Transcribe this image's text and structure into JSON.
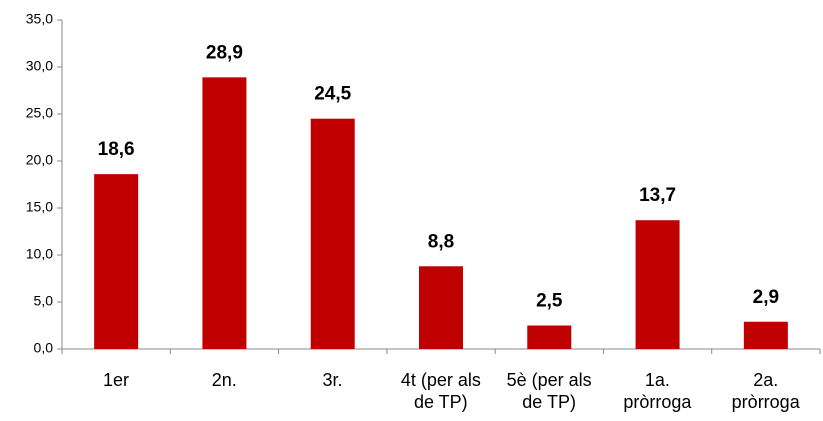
{
  "chart_data": {
    "type": "bar",
    "categories": [
      "1er",
      "2n.",
      "3r.",
      "4t (per als\nde TP)",
      "5è (per als\nde TP)",
      "1a.\npròrroga",
      "2a.\npròrroga"
    ],
    "values": [
      18.6,
      28.9,
      24.5,
      8.8,
      2.5,
      13.7,
      2.9
    ],
    "value_labels": [
      "18,6",
      "28,9",
      "24,5",
      "8,8",
      "2,5",
      "13,7",
      "2,9"
    ],
    "color": "#c00000",
    "ylim": [
      0,
      35
    ],
    "yticks": [
      {
        "value": 0,
        "label": "0,0"
      },
      {
        "value": 5,
        "label": "5,0"
      },
      {
        "value": 10,
        "label": "10,0"
      },
      {
        "value": 15,
        "label": "15,0"
      },
      {
        "value": 20,
        "label": "20,0"
      },
      {
        "value": 25,
        "label": "25,0"
      },
      {
        "value": 30,
        "label": "30,0"
      },
      {
        "value": 35,
        "label": "35,0"
      }
    ],
    "grid": false
  }
}
